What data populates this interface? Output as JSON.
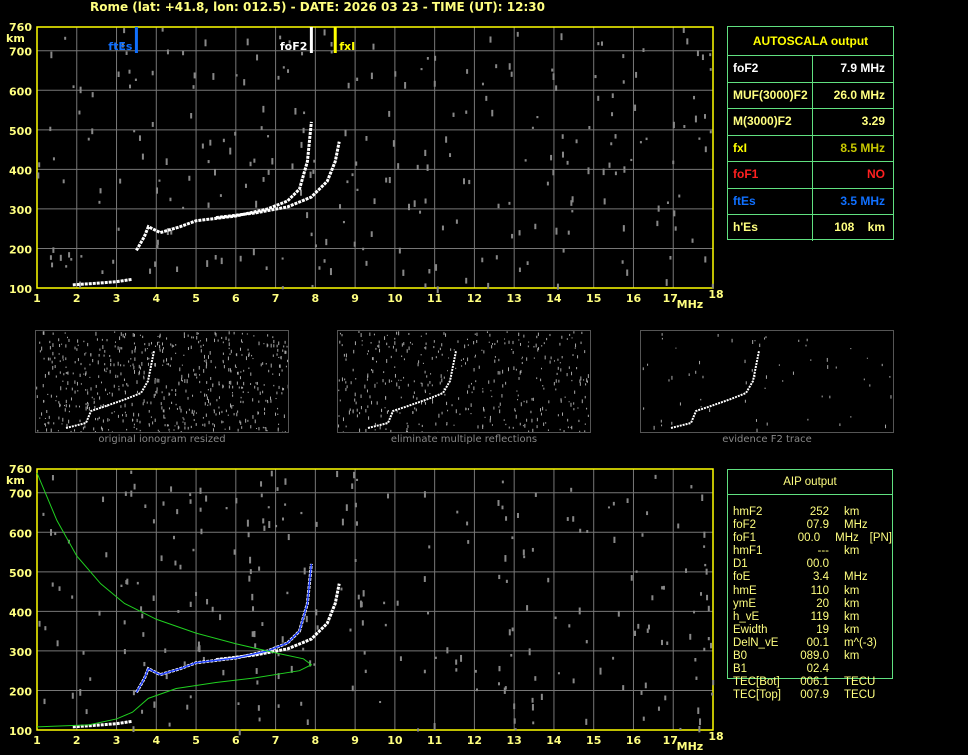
{
  "title": "Rome (lat: +41.8, lon: 012.5) - DATE: 2026 03 23 - TIME (UT): 12:30",
  "axes": {
    "x_unit": "MHz",
    "y_unit": "km",
    "x_range": [
      1,
      18
    ],
    "y_range": [
      100,
      760
    ],
    "x_ticks": [
      "1",
      "2",
      "3",
      "4",
      "5",
      "6",
      "7",
      "8",
      "9",
      "10",
      "11",
      "12",
      "13",
      "14",
      "15",
      "16",
      "17",
      "18"
    ],
    "y_ticks": [
      "100",
      "200",
      "300",
      "400",
      "500",
      "600",
      "700",
      "760"
    ]
  },
  "markers": [
    {
      "label": "ftEs",
      "freq": 3.5,
      "color": "#1070ff"
    },
    {
      "label": "foF2",
      "freq": 7.9,
      "color": "#ffffff"
    },
    {
      "label": "fxI",
      "freq": 8.5,
      "color": "#ffff00"
    }
  ],
  "traces": {
    "es": [
      [
        1.9,
        108
      ],
      [
        2.5,
        112
      ],
      [
        3.0,
        116
      ],
      [
        3.4,
        122
      ]
    ],
    "ordinary": [
      [
        3.5,
        195
      ],
      [
        3.7,
        230
      ],
      [
        3.8,
        255
      ],
      [
        4.1,
        240
      ],
      [
        4.6,
        255
      ],
      [
        5,
        270
      ],
      [
        6,
        282
      ],
      [
        6.8,
        300
      ],
      [
        7.3,
        320
      ],
      [
        7.6,
        350
      ],
      [
        7.8,
        420
      ],
      [
        7.9,
        520
      ]
    ],
    "extraordinary": [
      [
        5.5,
        278
      ],
      [
        6.5,
        290
      ],
      [
        7.3,
        305
      ],
      [
        7.9,
        330
      ],
      [
        8.3,
        370
      ],
      [
        8.5,
        420
      ],
      [
        8.6,
        470
      ]
    ],
    "profile": [
      [
        1,
        750
      ],
      [
        1.5,
        630
      ],
      [
        2,
        540
      ],
      [
        2.6,
        470
      ],
      [
        3.2,
        420
      ],
      [
        4,
        380
      ],
      [
        5,
        345
      ],
      [
        6,
        318
      ],
      [
        7,
        295
      ],
      [
        7.7,
        280
      ],
      [
        7.9,
        265
      ],
      [
        7.6,
        250
      ],
      [
        6.5,
        232
      ],
      [
        5.5,
        220
      ],
      [
        4.5,
        205
      ],
      [
        3.8,
        180
      ],
      [
        3.4,
        145
      ],
      [
        3,
        128
      ],
      [
        2.3,
        113
      ],
      [
        1,
        108
      ]
    ],
    "trace_color": "#ffffff",
    "fit_color": "#2040ff",
    "profile_color": "#20d020"
  },
  "thumbnails": [
    {
      "caption": "original ionogram resized"
    },
    {
      "caption": "eliminate multiple reflections"
    },
    {
      "caption": "evidence F2 trace"
    }
  ],
  "autoscala": {
    "header": "AUTOSCALA output",
    "rows": [
      {
        "key": "foF2",
        "value": "7.9 MHz",
        "kc": "#ffffff",
        "vc": "#ffffff"
      },
      {
        "key": "MUF(3000)F2",
        "value": "26.0 MHz",
        "kc": "#ffff80",
        "vc": "#ffff80"
      },
      {
        "key": "M(3000)F2",
        "value": "3.29",
        "kc": "#ffff80",
        "vc": "#ffff80"
      },
      {
        "key": "fxI",
        "value": "8.5 MHz",
        "kc": "#ffff00",
        "vc": "#c8c800"
      },
      {
        "key": "foF1",
        "value": "NO",
        "kc": "#ff2020",
        "vc": "#ff2020"
      },
      {
        "key": "ftEs",
        "value": "3.5 MHz",
        "kc": "#1070ff",
        "vc": "#1070ff"
      },
      {
        "key": "h'Es",
        "value": "108    km",
        "kc": "#ffff80",
        "vc": "#ffff80"
      }
    ]
  },
  "aip": {
    "header": "AIP output",
    "rows": [
      [
        "hmF2",
        "252",
        "km",
        ""
      ],
      [
        "foF2",
        "07.9",
        "MHz",
        ""
      ],
      [
        "foF1",
        "00.0",
        "MHz",
        "[PN]"
      ],
      [
        "hmF1",
        "---",
        "km",
        ""
      ],
      [
        "D1",
        "00.0",
        "",
        ""
      ],
      [
        "foE",
        "3.4",
        "MHz",
        ""
      ],
      [
        "hmE",
        "110",
        "km",
        ""
      ],
      [
        "ymE",
        "20",
        "km",
        ""
      ],
      [
        "h_vE",
        "119",
        "km",
        ""
      ],
      [
        "Ewidth",
        "19",
        "km",
        ""
      ],
      [
        "DelN_vE",
        "00.1",
        "m^(-3)",
        ""
      ],
      [
        "B0",
        "089.0",
        "km",
        ""
      ],
      [
        "B1",
        "02.4",
        "",
        ""
      ],
      [
        "TEC[Bot]",
        "006.1",
        "TECU",
        ""
      ],
      [
        "TEC[Top]",
        "007.9",
        "TECU",
        ""
      ]
    ]
  }
}
